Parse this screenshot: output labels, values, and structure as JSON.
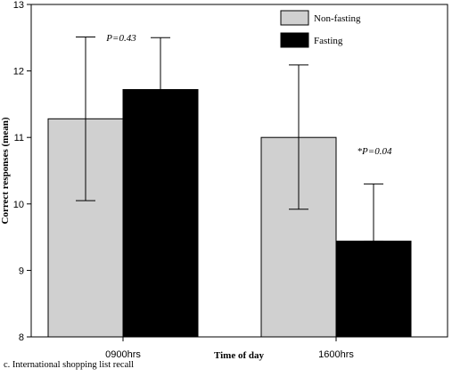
{
  "chart_data": {
    "type": "bar",
    "categories": [
      "0900hrs",
      "1600hrs"
    ],
    "series": [
      {
        "name": "Non-fasting",
        "color": "#d0d0d0",
        "values": [
          11.28,
          11.0
        ],
        "error_upper": [
          12.51,
          12.09
        ],
        "error_lower": [
          10.05,
          9.92
        ]
      },
      {
        "name": "Fasting",
        "color": "#000000",
        "values": [
          11.72,
          9.44
        ],
        "error_upper": [
          12.5,
          10.3
        ],
        "error_lower": [
          11.72,
          9.44
        ]
      }
    ],
    "xlabel": "Time of day",
    "ylabel": "Correct responses (mean)",
    "ylim": [
      8,
      13
    ],
    "yticks": [
      8,
      9,
      10,
      11,
      12,
      13
    ],
    "grid": false,
    "legend_position": "top-right",
    "annotations": [
      {
        "text": "P=0.43",
        "category": "0900hrs"
      },
      {
        "text": "*P=0.04",
        "category": "1600hrs"
      }
    ]
  },
  "caption": "c. International shopping list recall"
}
